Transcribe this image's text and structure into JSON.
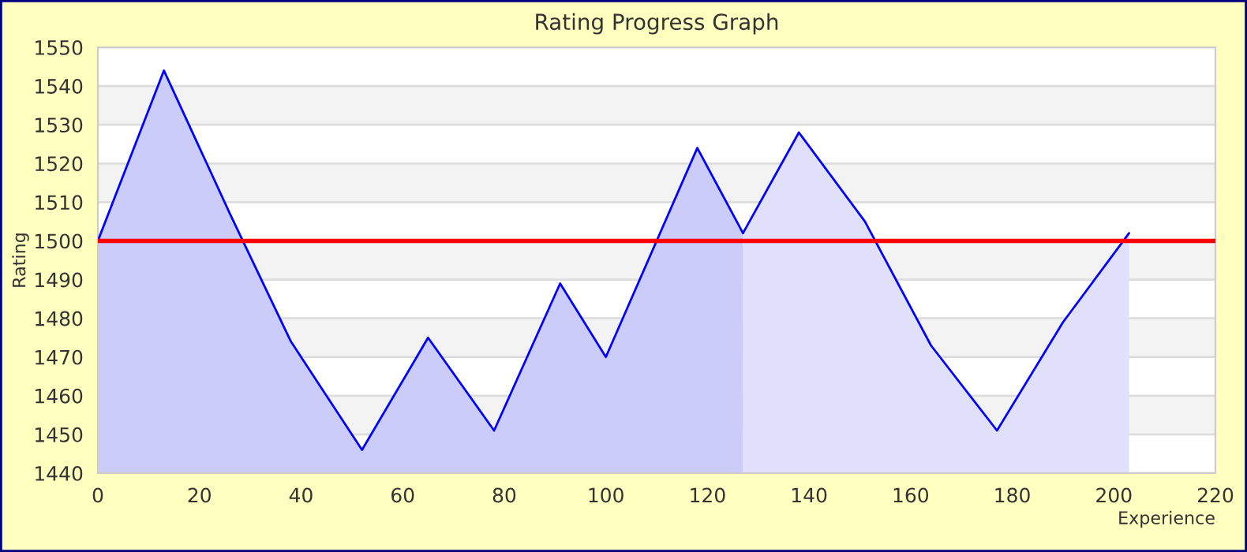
{
  "chart_data": {
    "type": "area",
    "title": "Rating Progress Graph",
    "xlabel": "Experience",
    "ylabel": "Rating",
    "series": [
      {
        "color": "#ccccfa",
        "x": [
          0,
          13,
          26,
          38,
          52,
          65,
          78,
          91,
          100,
          118,
          127
        ],
        "values": [
          1500,
          1544,
          1507,
          1474,
          1446,
          1475,
          1451,
          1489,
          1470,
          1524,
          1502
        ]
      },
      {
        "color": "#e0e0fa",
        "x": [
          127,
          138,
          151,
          164,
          177,
          190,
          203
        ],
        "values": [
          1502,
          1528,
          1505,
          1473,
          1451,
          1479,
          1502
        ]
      }
    ],
    "xlim": [
      0,
      220
    ],
    "xticks": [
      0,
      20,
      40,
      60,
      80,
      100,
      120,
      140,
      160,
      180,
      200,
      220
    ],
    "ylim": [
      1440,
      1550
    ],
    "yticks": [
      1440,
      1450,
      1460,
      1470,
      1480,
      1490,
      1500,
      1510,
      1520,
      1530,
      1540,
      1550
    ],
    "ref_lines": [
      {
        "axis": "y",
        "value": 1500,
        "color": "#ff0000"
      }
    ],
    "bands": [
      {
        "axis": "y",
        "from": 1530,
        "to": 1540,
        "color": "#f3f3f3"
      },
      {
        "axis": "y",
        "from": 1510,
        "to": 1520,
        "color": "#f3f3f3"
      },
      {
        "axis": "y",
        "from": 1490,
        "to": 1500,
        "color": "#f3f3f3"
      },
      {
        "axis": "y",
        "from": 1470,
        "to": 1480,
        "color": "#f3f3f3"
      },
      {
        "axis": "y",
        "from": 1450,
        "to": 1460,
        "color": "#f3f3f3"
      }
    ],
    "grid": "y",
    "legend": false
  }
}
